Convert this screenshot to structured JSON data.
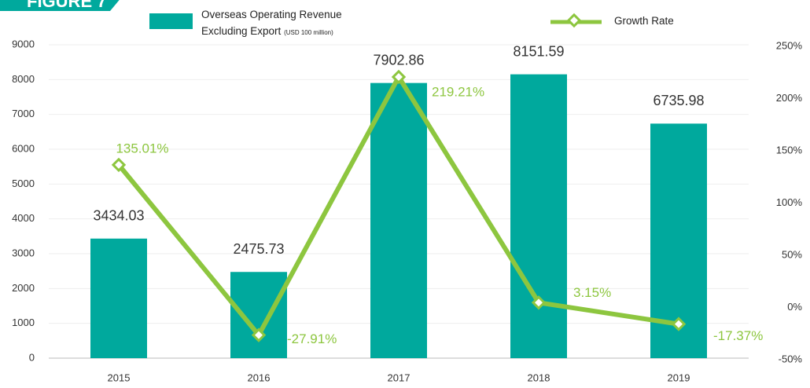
{
  "badge": "FIGURE 7",
  "chart_data": {
    "type": "bar",
    "categories": [
      "2015",
      "2016",
      "2017",
      "2018",
      "2019"
    ],
    "series": [
      {
        "name": "Overseas Operating Revenue Excluding Export",
        "unit": "(USD 100 million)",
        "color": "#00a99d",
        "values": [
          3434.03,
          2475.73,
          7902.86,
          8151.59,
          6735.98
        ]
      },
      {
        "name": "Growth Rate",
        "color": "#8dc63f",
        "type": "line",
        "axis": "y2",
        "values": [
          135.01,
          -27.91,
          219.21,
          3.15,
          -17.37
        ],
        "value_labels": [
          "135.01%",
          "-27.91%",
          "219.21%",
          "3.15%",
          "-17.37%"
        ]
      }
    ],
    "ylim": [
      0,
      9000
    ],
    "yticks": [
      0,
      1000,
      2000,
      3000,
      4000,
      5000,
      6000,
      7000,
      8000,
      9000
    ],
    "y2lim": [
      -50,
      250
    ],
    "y2ticks": [
      {
        "value": -50,
        "label": "-50%"
      },
      {
        "value": 0,
        "label": "0%"
      },
      {
        "value": 50,
        "label": "50%"
      },
      {
        "value": 100,
        "label": "100%"
      },
      {
        "value": 150,
        "label": "150%"
      },
      {
        "value": 200,
        "label": "200%"
      },
      {
        "value": 250,
        "label": "250%"
      }
    ],
    "grid": true
  }
}
